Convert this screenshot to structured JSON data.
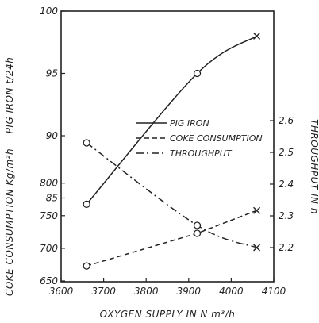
{
  "chart_data": {
    "type": "line",
    "title": "",
    "x": {
      "label": "OXYGEN SUPPLY IN N m³/h",
      "ticks": [
        3600,
        3700,
        3800,
        3900,
        4000,
        4100
      ],
      "tick_labels": [
        "3600",
        "3700",
        "3800",
        "3900",
        "4000",
        "4100"
      ],
      "range": [
        3600,
        4100
      ]
    },
    "y_left_top": {
      "label": "PIG IRON t/24h",
      "ticks": [
        85,
        90,
        95,
        100
      ],
      "tick_labels": [
        "85",
        "90",
        "95",
        "100"
      ]
    },
    "y_left_bottom": {
      "label": "COKE CONSUMPTION Kg/m²h",
      "ticks": [
        650,
        700,
        750,
        800
      ],
      "tick_labels": [
        "650",
        "700",
        "750",
        "800"
      ]
    },
    "y_right": {
      "label": "THROUGHPUT IN h",
      "ticks": [
        2.2,
        2.3,
        2.4,
        2.5,
        2.6
      ],
      "tick_labels": [
        "2.2",
        "2.3",
        "2.4",
        "2.5",
        "2.6"
      ]
    },
    "series": [
      {
        "name": "PIG IRON",
        "axis": "pig_iron",
        "style": "solid",
        "x": [
          3660,
          3920,
          4060
        ],
        "y": [
          84.5,
          95,
          98
        ],
        "markers": [
          "o",
          "o",
          "x"
        ]
      },
      {
        "name": "COKE CONSUMPTION",
        "axis": "coke",
        "style": "dashed",
        "x": [
          3660,
          3920,
          4060
        ],
        "y": [
          673,
          723,
          758
        ],
        "markers": [
          "o",
          "o",
          "x"
        ]
      },
      {
        "name": "THROUGHPUT",
        "axis": "throughput",
        "style": "dashdot",
        "x": [
          3660,
          3920,
          4060
        ],
        "y": [
          2.53,
          2.27,
          2.2
        ],
        "markers": [
          "o",
          "o",
          "x"
        ]
      }
    ],
    "legend": {
      "placement": "right",
      "entries": [
        "PIG IRON",
        "COKE CONSUMPTION",
        "THROUGHPUT"
      ]
    },
    "grid": false
  },
  "colors": {
    "ink": "#222222",
    "background": "#ffffff"
  }
}
